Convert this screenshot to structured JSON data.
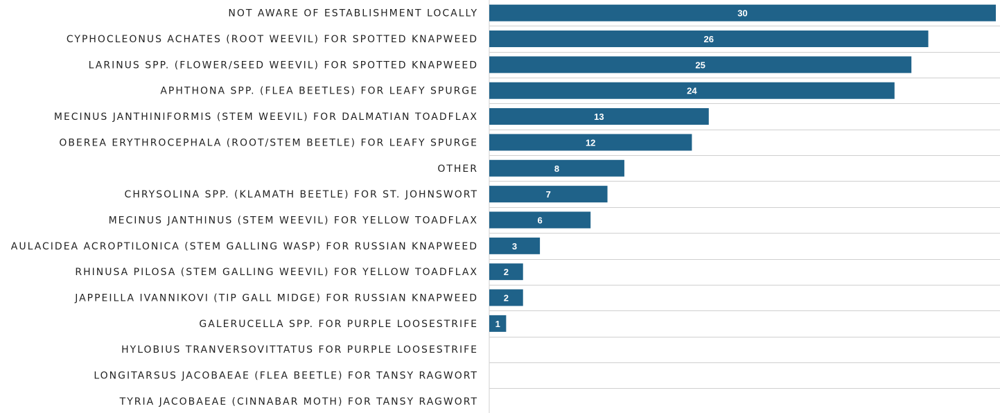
{
  "chart_data": {
    "type": "bar",
    "orientation": "horizontal",
    "categories": [
      "NOT AWARE OF ESTABLISHMENT LOCALLY",
      "CYPHOCLEONUS ACHATES (ROOT WEEVIL) FOR SPOTTED KNAPWEED",
      "LARINUS SPP. (FLOWER/SEED WEEVIL) FOR SPOTTED KNAPWEED",
      "APHTHONA SPP. (FLEA BEETLES) FOR LEAFY SPURGE",
      "MECINUS JANTHINIFORMIS (STEM WEEVIL) FOR DALMATIAN TOADFLAX",
      "OBEREA ERYTHROCEPHALA (ROOT/STEM BEETLE) FOR LEAFY SPURGE",
      "OTHER",
      "CHRYSOLINA SPP. (KLAMATH BEETLE) FOR ST. JOHNSWORT",
      "MECINUS JANTHINUS (STEM WEEVIL) FOR YELLOW TOADFLAX",
      "AULACIDEA ACROPTILONICA (STEM GALLING WASP) FOR RUSSIAN KNAPWEED",
      "RHINUSA PILOSA (STEM GALLING WEEVIL) FOR YELLOW TOADFLAX",
      "JAPPEILLA IVANNIKOVI (TIP GALL MIDGE) FOR RUSSIAN KNAPWEED",
      "GALERUCELLA SPP. FOR PURPLE LOOSESTRIFE",
      "HYLOBIUS TRANVERSOVITTATUS FOR PURPLE LOOSESTRIFE",
      "LONGITARSUS JACOBAEAE (FLEA BEETLE) FOR TANSY RAGWORT",
      "TYRIA JACOBAEAE (CINNABAR MOTH) FOR TANSY RAGWORT"
    ],
    "values": [
      30,
      26,
      25,
      24,
      13,
      12,
      8,
      7,
      6,
      3,
      2,
      2,
      1,
      0,
      0,
      0
    ],
    "data_labels": [
      "30",
      "26",
      "25",
      "24",
      "13",
      "12",
      "8",
      "7",
      "6",
      "3",
      "2",
      "2",
      "1",
      "",
      "",
      ""
    ],
    "xlim": [
      0,
      30
    ],
    "bar_color": "#1f6289",
    "grid": true,
    "legend": "none"
  }
}
